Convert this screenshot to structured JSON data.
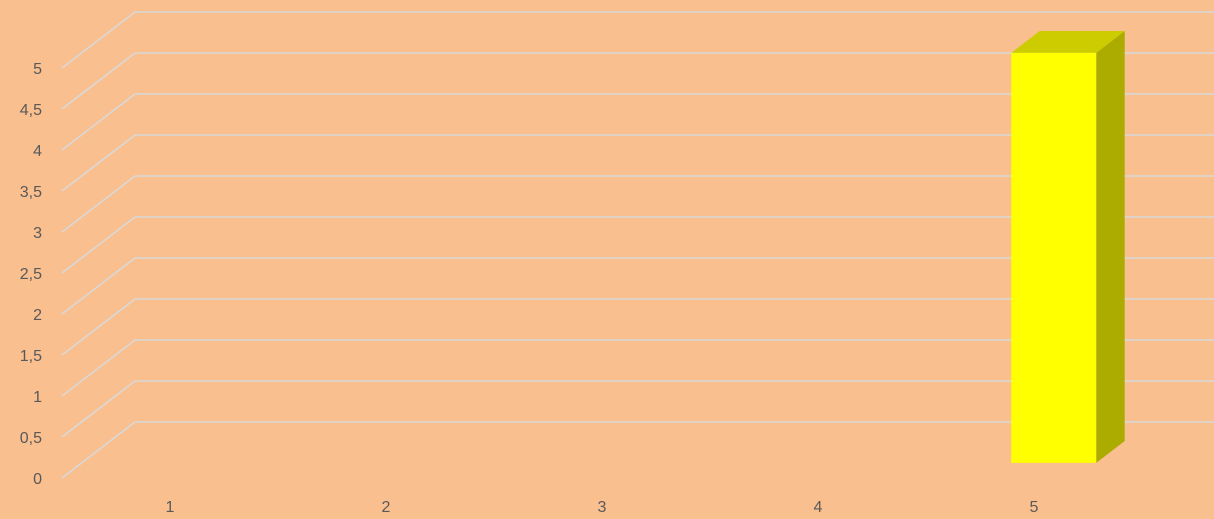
{
  "chart_data": {
    "type": "bar3d",
    "categories": [
      "1",
      "2",
      "3",
      "4",
      "5"
    ],
    "values": [
      null,
      null,
      null,
      null,
      5
    ],
    "color": "#ffff00",
    "ylim": [
      0,
      5
    ],
    "yticks": [
      0,
      {
        "value": 0.5,
        "label": "0,5"
      },
      1,
      {
        "value": 1.5,
        "label": "1,5"
      },
      2,
      {
        "value": 2.5,
        "label": "2,5"
      },
      3,
      {
        "value": 3.5,
        "label": "3,5"
      },
      4,
      {
        "value": 4.5,
        "label": "4,5"
      },
      5
    ],
    "grid": true
  }
}
